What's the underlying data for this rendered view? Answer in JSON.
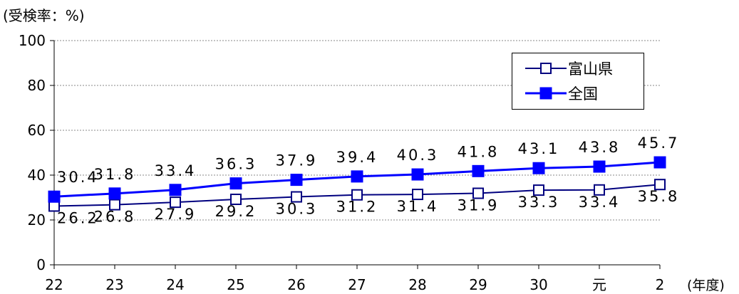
{
  "chart_data": {
    "type": "line",
    "ylabel": "(受検率：%)",
    "xlabel": "(年度)",
    "categories": [
      "22",
      "23",
      "24",
      "25",
      "26",
      "27",
      "28",
      "29",
      "30",
      "元",
      "2"
    ],
    "ylim": [
      0,
      100
    ],
    "yticks": [
      0,
      20,
      40,
      60,
      80,
      100
    ],
    "grid": "horizontal dashed",
    "legend_position": "top-right",
    "series": [
      {
        "name": "富山県",
        "marker": "hollow-square",
        "color": "#00007f",
        "values": [
          26.2,
          26.8,
          27.9,
          29.2,
          30.3,
          31.2,
          31.4,
          31.9,
          33.3,
          33.4,
          35.8
        ],
        "labels": [
          "26.2",
          "26.8",
          "27.9",
          "29.2",
          "30.3",
          "31.2",
          "31.4",
          "31.9",
          "33.3",
          "33.4",
          "35.8"
        ]
      },
      {
        "name": "全国",
        "marker": "filled-square",
        "color": "#0000ff",
        "values": [
          30.4,
          31.8,
          33.4,
          36.3,
          37.9,
          39.4,
          40.3,
          41.8,
          43.1,
          43.8,
          45.7
        ],
        "labels": [
          "30.4",
          "31.8",
          "33.4",
          "36.3",
          "37.9",
          "39.4",
          "40.3",
          "41.8",
          "43.1",
          "43.8",
          "45.7"
        ]
      }
    ]
  }
}
